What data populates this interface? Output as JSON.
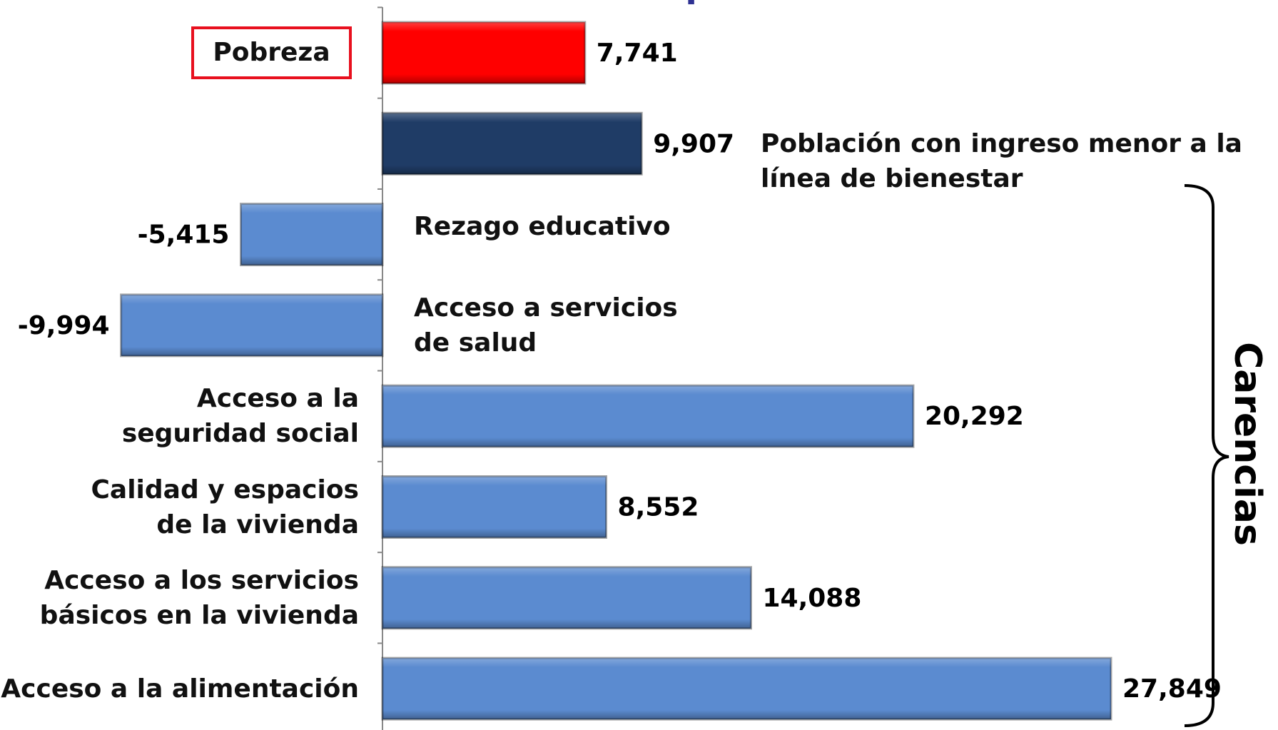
{
  "chart_data": {
    "type": "bar",
    "orientation": "horizontal",
    "title": "Miles de personas",
    "categories": [
      "Pobreza",
      "Población con ingreso menor a la línea de bienestar",
      "Rezago educativo",
      "Acceso a servicios de salud",
      "Acceso a  la seguridad social",
      "Calidad y espacios de la vivienda",
      "Acceso a los servicios básicos en la vivienda",
      "Acceso a la alimentación"
    ],
    "values": [
      7741,
      9907,
      -5415,
      -9994,
      20292,
      8552,
      14088,
      27849
    ],
    "value_labels": [
      "7,741",
      "9,907",
      "-5,415",
      "-9,994",
      "20,292",
      "8,552",
      "14,088",
      "27,849"
    ],
    "colors": [
      "#ff0000",
      "#1f3c66",
      "#5b8bd0",
      "#5b8bd0",
      "#5b8bd0",
      "#5b8bd0",
      "#5b8bd0",
      "#5b8bd0"
    ],
    "annotation": "Carencias"
  }
}
